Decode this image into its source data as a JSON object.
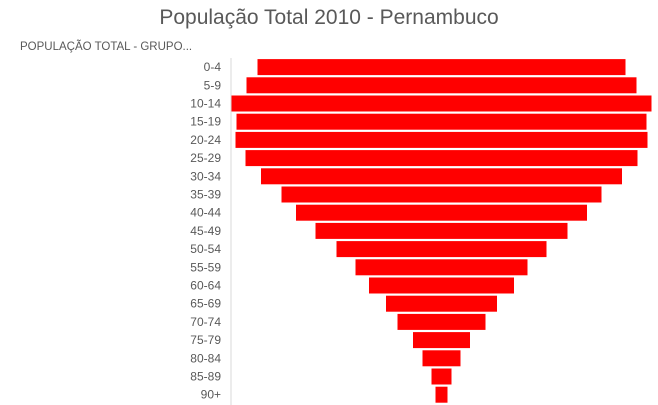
{
  "chart_data": {
    "type": "bar",
    "orientation": "horizontal",
    "title": "População Total 2010 - Pernambuco",
    "category_axis_title": "POPULAÇÃO TOTAL - GRUPO...",
    "categories": [
      "0-4",
      "5-9",
      "10-14",
      "15-19",
      "20-24",
      "25-29",
      "30-34",
      "35-39",
      "40-44",
      "45-49",
      "50-54",
      "55-59",
      "60-64",
      "65-69",
      "70-74",
      "75-79",
      "80-84",
      "85-89",
      "90+"
    ],
    "values": [
      368,
      390,
      420,
      410,
      412,
      392,
      361,
      320,
      291,
      252,
      210,
      172,
      145,
      111,
      88,
      57,
      38,
      20,
      12
    ],
    "bar_color": "#ff0000",
    "grid": false,
    "legend": "none"
  }
}
